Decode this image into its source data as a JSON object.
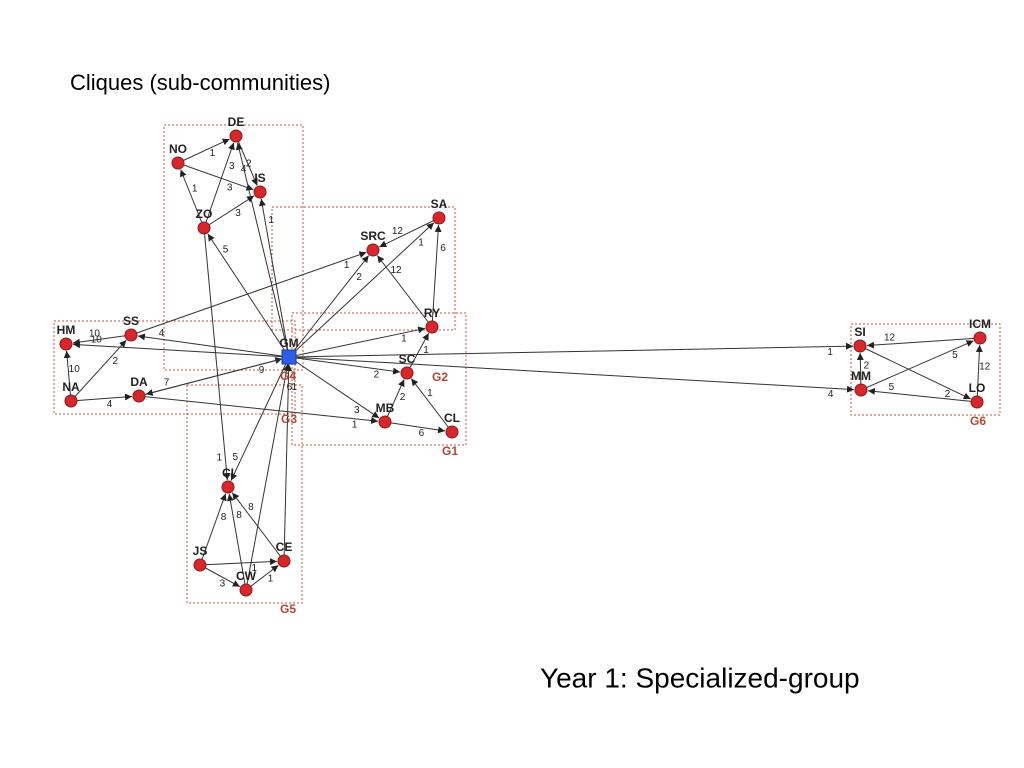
{
  "title": "Cliques (sub-communities)",
  "caption": "Year 1: Specialized-group",
  "nodes": [
    "DE",
    "NO",
    "IS",
    "ZO",
    "SA",
    "SRC",
    "HM",
    "SS",
    "GM",
    "RY",
    "SI",
    "ICM",
    "SC",
    "NA",
    "DA",
    "MM",
    "LO",
    "MB",
    "CL",
    "CI",
    "JS",
    "CE",
    "CW"
  ],
  "groups": [
    "G1",
    "G2",
    "G3",
    "G4",
    "G5",
    "G6"
  ],
  "edges": [
    {
      "from": "NO",
      "to": "DE",
      "label": "1"
    },
    {
      "from": "NO",
      "to": "IS",
      "label": "3"
    },
    {
      "from": "DE",
      "to": "IS",
      "label": "4"
    },
    {
      "from": "ZO",
      "to": "DE",
      "label": "3"
    },
    {
      "from": "ZO",
      "to": "IS",
      "label": "3"
    },
    {
      "from": "ZO",
      "to": "NO",
      "label": "1"
    },
    {
      "from": "GM",
      "to": "ZO",
      "label": "5"
    },
    {
      "from": "GM",
      "to": "IS",
      "label": "1"
    },
    {
      "from": "GM",
      "to": "DE",
      "label": "2"
    },
    {
      "from": "GM",
      "to": "SRC",
      "label": "2"
    },
    {
      "from": "GM",
      "to": "SA",
      "label": "1"
    },
    {
      "from": "SS",
      "to": "SRC",
      "label": "1"
    },
    {
      "from": "GM",
      "to": "RY",
      "label": "1"
    },
    {
      "from": "RY",
      "to": "SRC",
      "label": "12"
    },
    {
      "from": "SA",
      "to": "SRC",
      "label": "12"
    },
    {
      "from": "RY",
      "to": "SA",
      "label": "6"
    },
    {
      "from": "GM",
      "to": "SS",
      "label": "4"
    },
    {
      "from": "SS",
      "to": "HM",
      "label": "10"
    },
    {
      "from": "NA",
      "to": "HM",
      "label": "10"
    },
    {
      "from": "NA",
      "to": "SS",
      "label": "2"
    },
    {
      "from": "NA",
      "to": "DA",
      "label": "4"
    },
    {
      "from": "DA",
      "to": "GM",
      "label": "9"
    },
    {
      "from": "GM",
      "to": "DA",
      "label": "7"
    },
    {
      "from": "GM",
      "to": "HM",
      "label": "10"
    },
    {
      "from": "GM",
      "to": "SC",
      "label": "2"
    },
    {
      "from": "SC",
      "to": "RY",
      "label": "1"
    },
    {
      "from": "MB",
      "to": "SC",
      "label": "2"
    },
    {
      "from": "CL",
      "to": "SC",
      "label": "1"
    },
    {
      "from": "MB",
      "to": "CL",
      "label": "6"
    },
    {
      "from": "GM",
      "to": "MB",
      "label": "3"
    },
    {
      "from": "DA",
      "to": "MB",
      "label": "1"
    },
    {
      "from": "GM",
      "to": "CI",
      "label": "5"
    },
    {
      "from": "ZO",
      "to": "CI",
      "label": "1"
    },
    {
      "from": "JS",
      "to": "CI",
      "label": "8"
    },
    {
      "from": "CW",
      "to": "CI",
      "label": "8"
    },
    {
      "from": "CE",
      "to": "CI",
      "label": "8"
    },
    {
      "from": "JS",
      "to": "CW",
      "label": "3"
    },
    {
      "from": "JS",
      "to": "CE",
      "label": "1"
    },
    {
      "from": "CW",
      "to": "CE",
      "label": "1"
    },
    {
      "from": "CW",
      "to": "GM",
      "label": "6"
    },
    {
      "from": "CE",
      "to": "GM",
      "label": "1"
    },
    {
      "from": "GM",
      "to": "SI",
      "label": "1"
    },
    {
      "from": "GM",
      "to": "MM",
      "label": "4"
    },
    {
      "from": "MM",
      "to": "SI",
      "label": "2"
    },
    {
      "from": "SI",
      "to": "LO",
      "label": "2"
    },
    {
      "from": "MM",
      "to": "ICM",
      "label": "5"
    },
    {
      "from": "ICM",
      "to": "SI",
      "label": "12"
    },
    {
      "from": "LO",
      "to": "ICM",
      "label": "12"
    },
    {
      "from": "LO",
      "to": "MM",
      "label": "5"
    }
  ]
}
